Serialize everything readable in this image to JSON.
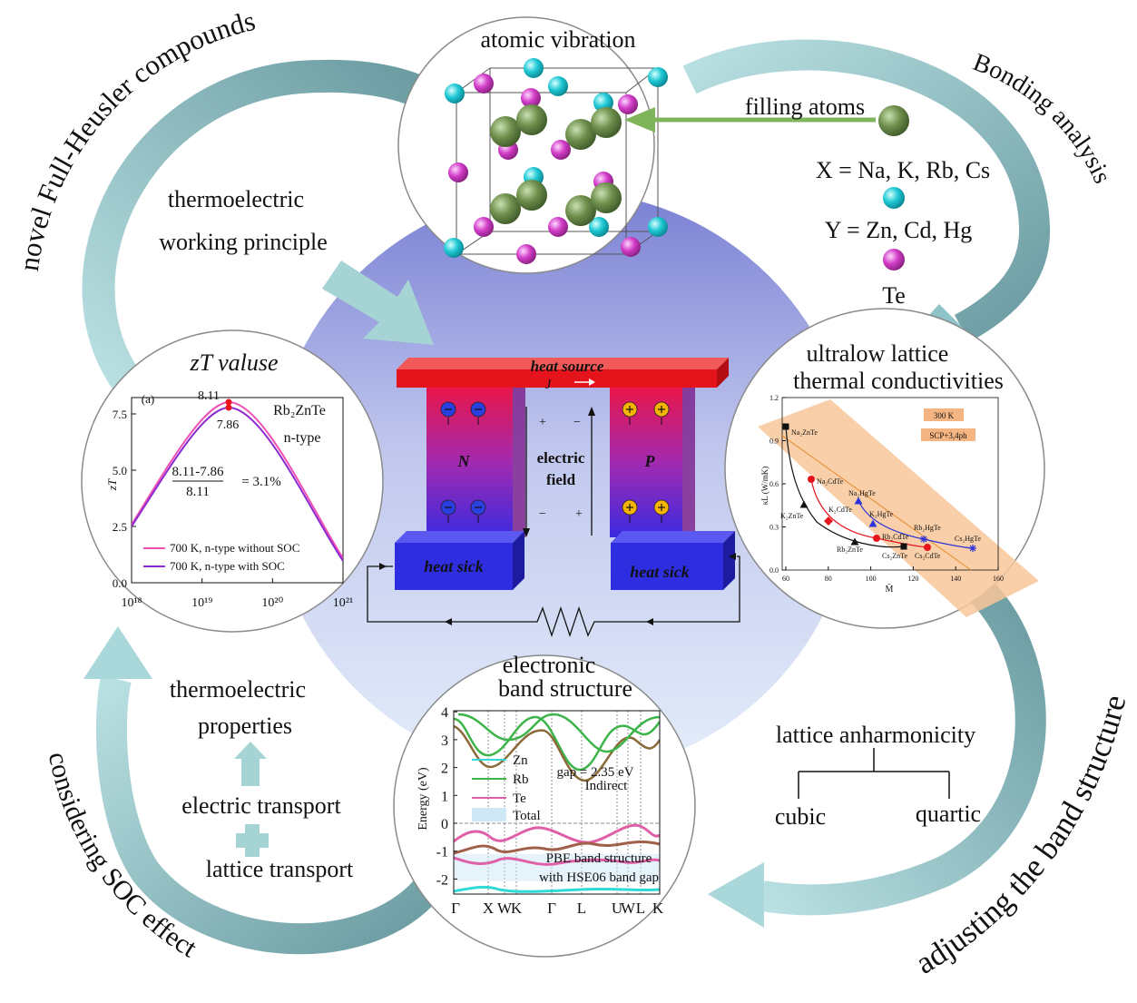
{
  "cycle": {
    "top_left": "novel Full-Heusler compounds",
    "top_right": "Bonding analysis",
    "bottom_left": "considering SOC effect",
    "bottom_right": "adjusting the band structure"
  },
  "working_principle": [
    "thermoelectric",
    "working principle"
  ],
  "crystal": {
    "title": "atomic vibration",
    "filling": "filling atoms",
    "legend": [
      "X = Na, K, Rb, Cs",
      "Y = Zn, Cd, Hg",
      "Te"
    ]
  },
  "device": {
    "heat_source": "heat source",
    "current": "J",
    "n_leg": "N",
    "p_leg": "P",
    "field": [
      "electric",
      "field"
    ],
    "signs": [
      "+",
      "−",
      "−",
      "+"
    ],
    "heat_sink": [
      "heat sick",
      "heat sick"
    ]
  },
  "zt_panel": {
    "title": "zT valuse",
    "panel": "(a)",
    "peak_labels": [
      "8.11",
      "7.86"
    ],
    "compound": "Rb₂ZnTe",
    "carrier": "n-type",
    "fraction": {
      "numerator": "8.11-7.86",
      "denominator": "8.11",
      "result": "= 3.1%"
    },
    "ylabel": "zT",
    "yticks": [
      "0.0",
      "2.5",
      "5.0",
      "7.5"
    ],
    "xticks": [
      "10¹⁸",
      "10¹⁹",
      "10²⁰",
      "10²¹"
    ],
    "legend": [
      "700 K, n-type without SOC",
      "700 K, n-type with SOC"
    ]
  },
  "kappa_panel": {
    "title": [
      "ultralow lattice",
      "thermal conductivities"
    ],
    "tags": [
      "300 K",
      "SCP+3,4ph"
    ],
    "ylabel": "κL (W/mK)",
    "xlabel": "M̄",
    "yticks": [
      "0.0",
      "0.3",
      "0.6",
      "0.9",
      "1.2"
    ],
    "xticks": [
      "60",
      "80",
      "100",
      "120",
      "140",
      "160"
    ],
    "compounds": [
      "Na₂ZnTe",
      "K₂ZnTe",
      "Rb₂ZnTe",
      "Cs₂ZnTe",
      "Na₂CdTe",
      "K₂CdTe",
      "Rb₂CdTe",
      "Cs₂CdTe",
      "Na₂HgTe",
      "K₂HgTe",
      "Rb₂HgTe",
      "Cs₂HgTe"
    ]
  },
  "band_panel": {
    "title": [
      "electronic",
      "band structure"
    ],
    "ylabel": "Energy (eV)",
    "yticks": [
      "4",
      "3",
      "2",
      "1",
      "0",
      "-1",
      "-2"
    ],
    "kpoints": [
      "Γ",
      "X",
      "W",
      "K",
      "Γ",
      "L",
      "U",
      "W",
      "L",
      "K"
    ],
    "legend": [
      "Zn",
      "Rb",
      "Te",
      "Total"
    ],
    "gap": [
      "gap = 2.35 eV",
      "Indirect"
    ],
    "note": [
      "PBE band structure",
      "with HSE06 band gap"
    ]
  },
  "properties": {
    "title": [
      "thermoelectric",
      "properties"
    ],
    "electric": "electric transport",
    "lattice": "lattice transport"
  },
  "anharmonicity": {
    "title": "lattice anharmonicity",
    "cubic": "cubic",
    "quartic": "quartic"
  }
}
